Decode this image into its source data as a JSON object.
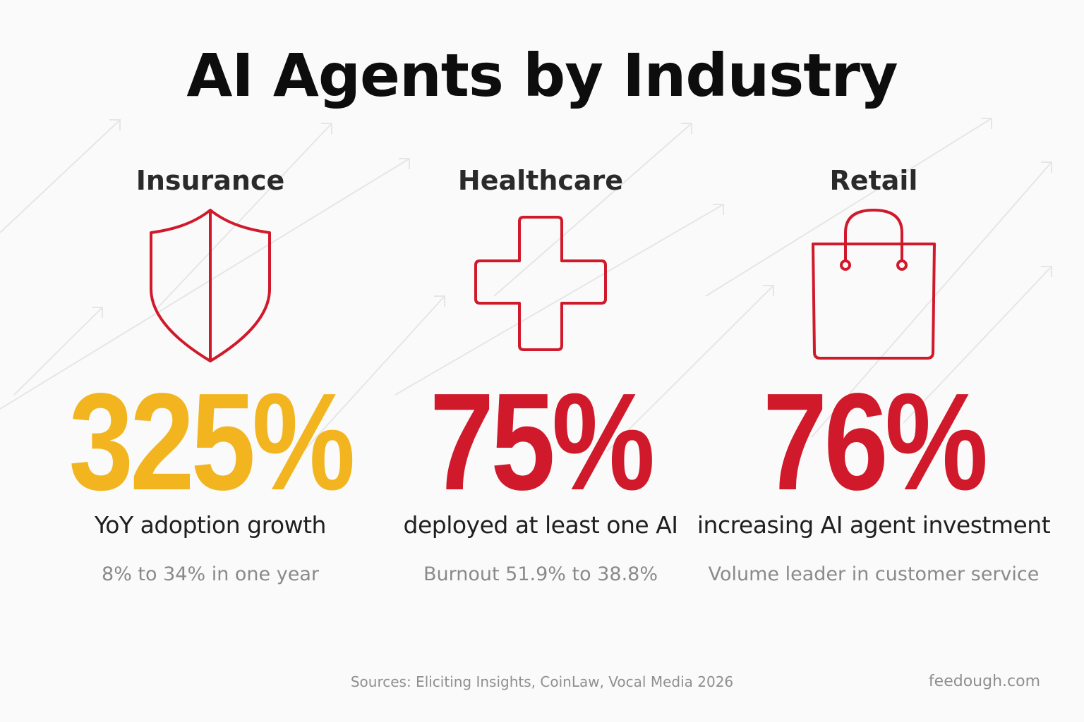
{
  "title": "AI Agents by Industry",
  "colors": {
    "accent_red": "#d0192a",
    "accent_yellow": "#f2b51f",
    "title": "#0d0d0d",
    "muted": "#8a8a8a"
  },
  "industries": [
    {
      "name": "Insurance",
      "icon": "shield-icon",
      "stat": "325%",
      "stat_color": "#f2b51f",
      "description": "YoY adoption growth",
      "detail": "8% to 34% in one year"
    },
    {
      "name": "Healthcare",
      "icon": "medical-cross-icon",
      "stat": "75%",
      "stat_color": "#d0192a",
      "description": "deployed at least one AI",
      "detail": "Burnout 51.9% to 38.8%"
    },
    {
      "name": "Retail",
      "icon": "shopping-bag-icon",
      "stat": "76%",
      "stat_color": "#d0192a",
      "description": "increasing AI agent investment",
      "detail": "Volume leader in customer service"
    }
  ],
  "footer": {
    "sources": "Sources: Eliciting Insights, CoinLaw, Vocal Media 2026",
    "brand": "feedough.com"
  }
}
